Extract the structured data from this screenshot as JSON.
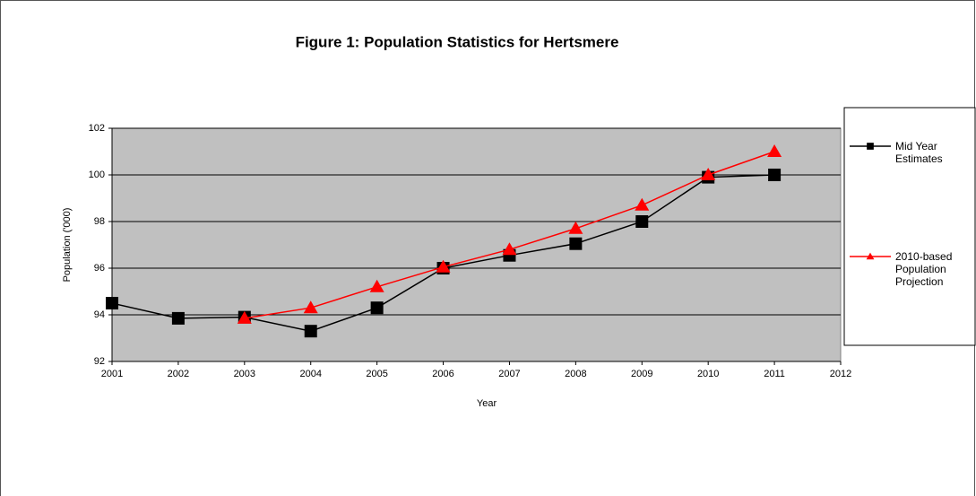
{
  "chart_data": {
    "type": "line",
    "title": "Figure 1: Population Statistics for Hertsmere",
    "x_label": "Year",
    "y_label": "Population    ('000)",
    "x": [
      2001,
      2002,
      2003,
      2004,
      2005,
      2006,
      2007,
      2008,
      2009,
      2010,
      2011
    ],
    "series": [
      {
        "name": "Mid Year Estimates",
        "color": "#000000",
        "marker": "square",
        "values": [
          94.5,
          93.85,
          93.9,
          93.3,
          94.3,
          96.0,
          96.55,
          97.05,
          98.0,
          99.9,
          100.0
        ]
      },
      {
        "name": "2010-based Population Projection",
        "color": "#ff0000",
        "marker": "triangle",
        "values": [
          null,
          null,
          93.85,
          94.3,
          95.2,
          96.05,
          96.8,
          97.7,
          98.7,
          100.0,
          101.0
        ]
      }
    ],
    "xlim": [
      2001,
      2012
    ],
    "xticks": [
      2001,
      2002,
      2003,
      2004,
      2005,
      2006,
      2007,
      2008,
      2009,
      2010,
      2011,
      2012
    ],
    "ylim": [
      92,
      102
    ],
    "yticks": [
      92,
      94,
      96,
      98,
      100,
      102
    ],
    "grid": true,
    "legend": "right"
  }
}
